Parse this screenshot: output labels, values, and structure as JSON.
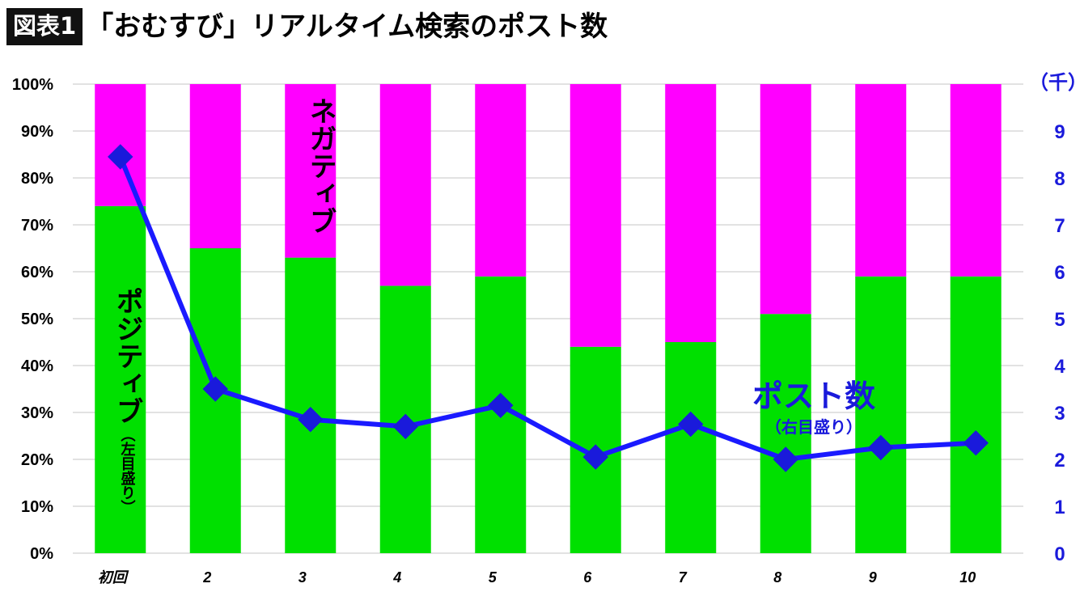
{
  "header": {
    "badge": "図表1",
    "title": "「おむすび」リアルタイム検索のポスト数"
  },
  "labels": {
    "positive_main": "ポジティブ",
    "positive_sub": "（左目盛り）",
    "negative": "ネガティブ",
    "posts_main": "ポスト数",
    "posts_sub": "（右目盛り）",
    "right_unit": "（千）"
  },
  "colors": {
    "positive": "#00e000",
    "negative": "#ff00ff",
    "line": "#1a1aff",
    "marker": "#1a1adb",
    "grid": "#d9d9d9",
    "right_axis_text": "#1a1adb"
  },
  "chart_data": {
    "type": "bar",
    "stacked": true,
    "categories": [
      "初回",
      "2",
      "3",
      "4",
      "5",
      "6",
      "7",
      "8",
      "9",
      "10"
    ],
    "series": [
      {
        "name": "ポジティブ",
        "values": [
          74,
          65,
          63,
          57,
          59,
          44,
          45,
          51,
          59,
          59
        ]
      },
      {
        "name": "ネガティブ",
        "values": [
          26,
          35,
          37,
          43,
          41,
          56,
          55,
          49,
          41,
          41
        ]
      }
    ],
    "line_series": {
      "name": "ポスト数",
      "axis": "right",
      "values": [
        8.45,
        3.5,
        2.85,
        2.7,
        3.15,
        2.05,
        2.75,
        2.0,
        2.25,
        2.35
      ]
    },
    "ylim": [
      0,
      100
    ],
    "y_ticks": [
      "0%",
      "10%",
      "20%",
      "30%",
      "40%",
      "50%",
      "60%",
      "70%",
      "80%",
      "90%",
      "100%"
    ],
    "y2lim": [
      0,
      10
    ],
    "y2_ticks": [
      "0",
      "1",
      "2",
      "3",
      "4",
      "5",
      "6",
      "7",
      "8",
      "9"
    ],
    "grid": true
  }
}
